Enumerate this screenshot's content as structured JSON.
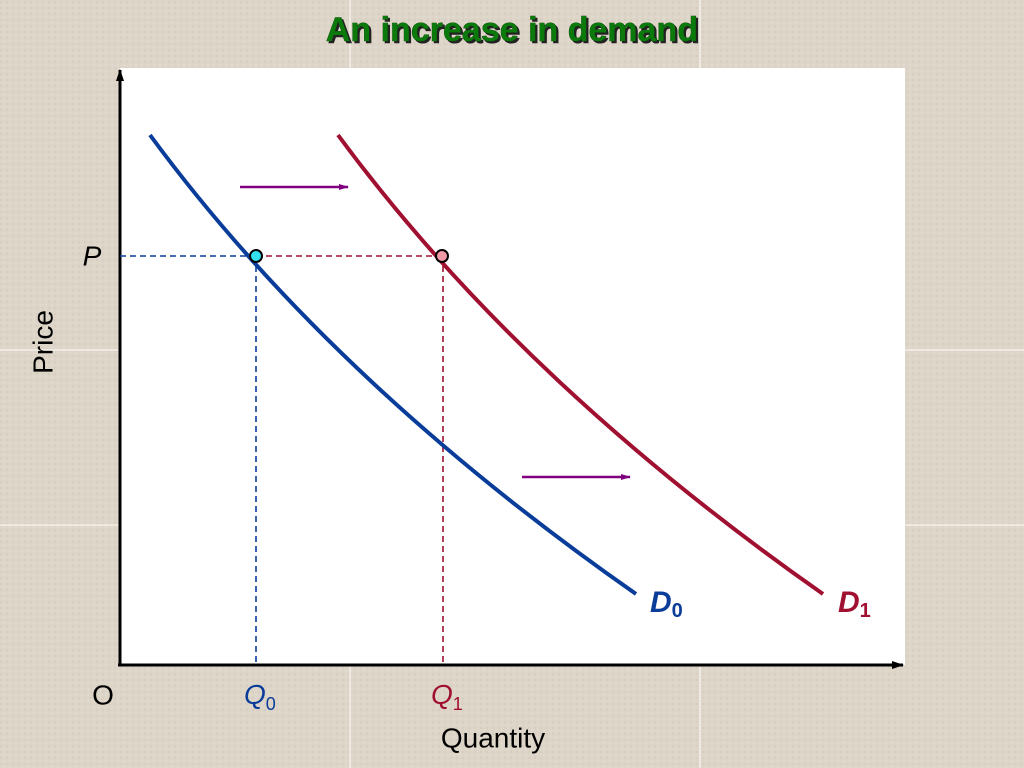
{
  "title": "An increase in demand",
  "axes": {
    "y_label": "Price",
    "x_label": "Quantity",
    "origin": "O"
  },
  "price_label": "P",
  "quantity_labels": [
    {
      "main": "Q",
      "sub": "0"
    },
    {
      "main": "Q",
      "sub": "1"
    }
  ],
  "curves": [
    {
      "main": "D",
      "sub": "0"
    },
    {
      "main": "D",
      "sub": "1"
    }
  ]
}
